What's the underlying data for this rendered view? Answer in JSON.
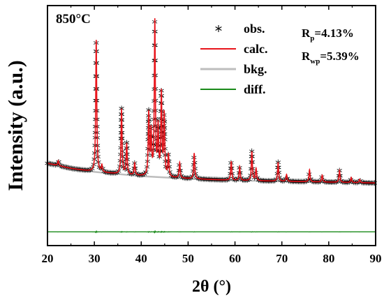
{
  "chart_data": {
    "type": "line",
    "title": "850°C",
    "xlabel": "2θ (°)",
    "ylabel": "Intensity (a.u.)",
    "xlim": [
      20,
      90
    ],
    "ylim": [
      -0.35,
      1.05
    ],
    "x_ticks": [
      20,
      30,
      40,
      50,
      60,
      70,
      80,
      90
    ],
    "x_tick_labels": [
      "20",
      "30",
      "40",
      "50",
      "60",
      "70",
      "80",
      "90"
    ],
    "y_ticks_labeled": false,
    "grid": false,
    "legend_position": "top-right",
    "legend": [
      {
        "label": "obs.",
        "marker": "asterisk",
        "color": "#000000"
      },
      {
        "label": "calc.",
        "color": "#e8141b"
      },
      {
        "label": "bkg.",
        "color": "#bdbdbd"
      },
      {
        "label": "diff.",
        "color": "#1a8a1a"
      }
    ],
    "annotations": {
      "rp": {
        "symbol": "R",
        "sub": "p",
        "value": "=4.13%"
      },
      "rwp": {
        "symbol": "R",
        "sub": "wp",
        "value": "=5.39%"
      }
    },
    "background": {
      "x": [
        20,
        25,
        30,
        40,
        50,
        60,
        70,
        80,
        90
      ],
      "y": [
        0.13,
        0.1,
        0.08,
        0.055,
        0.04,
        0.03,
        0.025,
        0.02,
        0.015
      ]
    },
    "diff_baseline": -0.27,
    "peaks": [
      {
        "pos": 22.3,
        "height": 0.03
      },
      {
        "pos": 30.4,
        "height": 0.77
      },
      {
        "pos": 31.6,
        "height": 0.04
      },
      {
        "pos": 35.8,
        "height": 0.38
      },
      {
        "pos": 36.9,
        "height": 0.18
      },
      {
        "pos": 38.6,
        "height": 0.07
      },
      {
        "pos": 41.6,
        "height": 0.36
      },
      {
        "pos": 42.1,
        "height": 0.25
      },
      {
        "pos": 42.9,
        "height": 0.9
      },
      {
        "pos": 43.6,
        "height": 0.28
      },
      {
        "pos": 44.3,
        "height": 0.48
      },
      {
        "pos": 44.9,
        "height": 0.36
      },
      {
        "pos": 45.8,
        "height": 0.13
      },
      {
        "pos": 48.2,
        "height": 0.09
      },
      {
        "pos": 51.3,
        "height": 0.15
      },
      {
        "pos": 59.2,
        "height": 0.11
      },
      {
        "pos": 61.0,
        "height": 0.08
      },
      {
        "pos": 63.6,
        "height": 0.17
      },
      {
        "pos": 64.5,
        "height": 0.07
      },
      {
        "pos": 69.2,
        "height": 0.11
      },
      {
        "pos": 71.0,
        "height": 0.04
      },
      {
        "pos": 75.9,
        "height": 0.07
      },
      {
        "pos": 78.6,
        "height": 0.04
      },
      {
        "pos": 82.3,
        "height": 0.07
      },
      {
        "pos": 84.8,
        "height": 0.03
      },
      {
        "pos": 86.6,
        "height": 0.02
      }
    ]
  }
}
